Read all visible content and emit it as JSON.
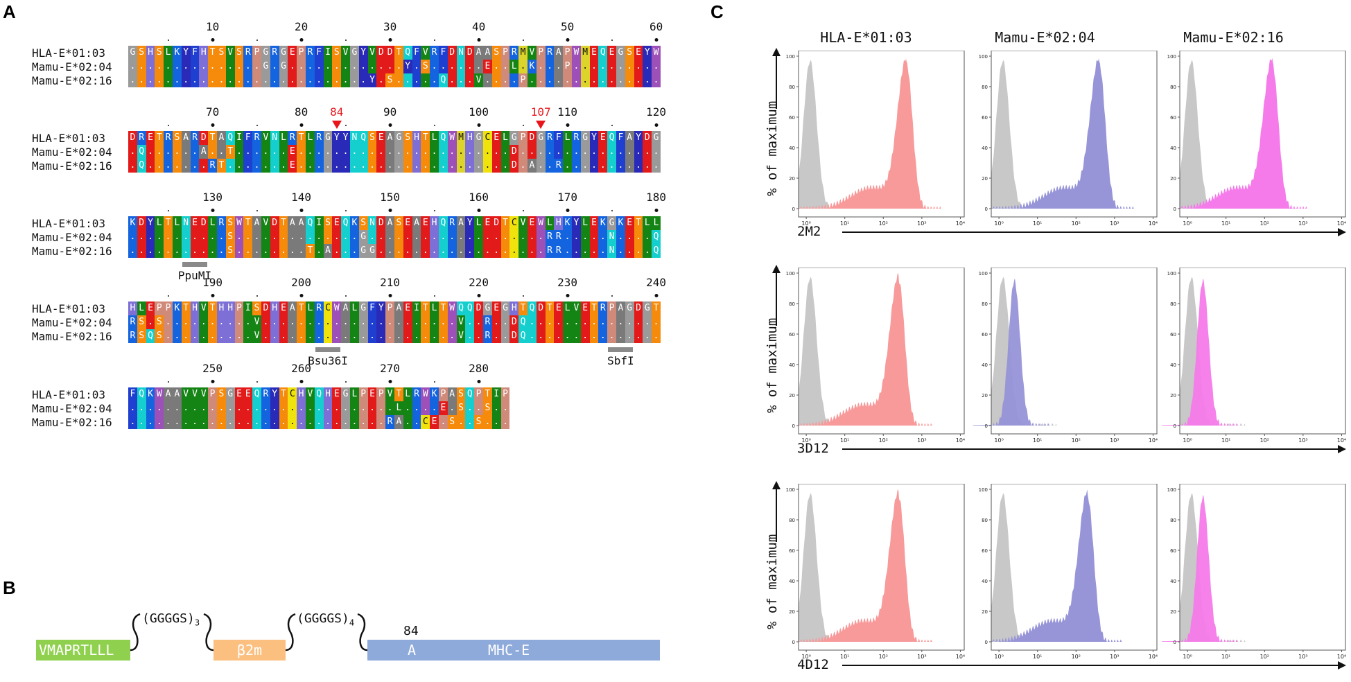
{
  "panels": {
    "a": "A",
    "b": "B",
    "c": "C"
  },
  "alignment": {
    "names": [
      "HLA-E*01:03",
      "Mamu-E*02:04",
      "Mamu-E*02:16"
    ],
    "blocks": [
      {
        "start": 1,
        "ref": "GSHSLKYFHTSVSRPGRGEPRFISVGYVDDTQFVRFDNDAASPRMVPRAPWMEQEGSEYW",
        "s2": "...............G.G.............Y.S......E..L.K...P..",
        "s3": "...........................Y.S.....Q...V....P...",
        "ticks": [
          "10",
          "20",
          "30",
          "40",
          "50",
          "60"
        ],
        "tickpos": [
          10,
          20,
          30,
          40,
          50,
          60
        ],
        "markers": [],
        "enzymes": []
      },
      {
        "start": 61,
        "ref": "DRETRSARDTAQIFRVNLRTLRGYYNQSEAGSHTLQWMHGCELGPDGRFLRGYEQFAYDG",
        "s2": ".Q......A..T......E........................D...................",
        "s3": ".Q.......RT.......E........................D.A..R...............",
        "ticks": [
          "70",
          "80",
          "84",
          "90",
          "100",
          "107",
          "110",
          "120"
        ],
        "tickpos": [
          70,
          80,
          84,
          90,
          100,
          107,
          110,
          120
        ],
        "markers": [
          "84",
          "107"
        ],
        "enzymes": []
      },
      {
        "start": 121,
        "ref": "KDYLTLNEDLRSWTAVDTAAQISEQKSNDASEAEHQRAYLEDTCVEWLHKYLEKGKETLL",
        "s2": "...........S..............G....................RR.....N....Q",
        "s3": "...........S........T.A...GG...................RR.....N....Q",
        "ticks": [
          "130",
          "140",
          "150",
          "160",
          "170",
          "180"
        ],
        "tickpos": [
          130,
          140,
          150,
          160,
          170,
          180
        ],
        "markers": [],
        "enzymes": [
          {
            "name": "PpuMI",
            "pos": 128
          }
        ]
      },
      {
        "start": 181,
        "ref": "HLEPPKTHVTHHPISDHEATLRCWALGFYPAEITLTWQQDGEGHTQDTELVETRPAGDGT",
        "s2": "RS.S..........V......................V..R..DQ.................",
        "s3": "RSQS..........V......................V..R..DQ.................",
        "ticks": [
          "190",
          "200",
          "210",
          "220",
          "230",
          "240"
        ],
        "tickpos": [
          190,
          200,
          210,
          220,
          230,
          240
        ],
        "markers": [],
        "enzymes": [
          {
            "name": "Bsu36I",
            "pos": 203
          },
          {
            "name": "SbfI",
            "pos": 236
          }
        ]
      },
      {
        "start": 241,
        "ref": "FQKWAAVVVPSGEEQRYTCHVQHEGLPEPVTLRWKPASQPTIP",
        "s2": "..............................L....E.S..S..",
        "s3": ".............................RA..CE.S..S..",
        "ticks": [
          "250",
          "260",
          "270",
          "280"
        ],
        "tickpos": [
          250,
          260,
          270,
          280
        ],
        "markers": [],
        "enzymes": []
      }
    ]
  },
  "construct": {
    "peptide": "VMAPRTLLL",
    "linker1": "(GGGGS)",
    "linker1_sub": "3",
    "b2m": "β2m",
    "linker2": "(GGGGS)",
    "linker2_sub": "4",
    "pos_label": "84",
    "pos_residue": "A",
    "mhc": "MHC-E",
    "colors": {
      "peptide": "#8fd14f",
      "b2m": "#fbbf80",
      "mhc": "#8eaadb"
    }
  },
  "flow": {
    "columns": [
      "HLA-E*01:03",
      "Mamu-E*02:04",
      "Mamu-E*02:16"
    ],
    "rows": [
      "2M2",
      "3D12",
      "4D12"
    ],
    "ylabel": "% of maximum",
    "yticks": [
      "0",
      "20",
      "40",
      "60",
      "80",
      "100"
    ],
    "xticks": [
      "10⁰",
      "10¹",
      "10²",
      "10³",
      "10⁴"
    ],
    "colors": {
      "HLA-E*01:03": "#f8999a",
      "Mamu-E*02:04": "#9794d8",
      "Mamu-E*02:16": "#f57aea",
      "isotype": "#c8c8c8"
    },
    "peaks_log10": [
      [
        2.6,
        2.6,
        2.2
      ],
      [
        2.4,
        0.4,
        0.4
      ],
      [
        2.4,
        2.3,
        0.4
      ]
    ]
  }
}
